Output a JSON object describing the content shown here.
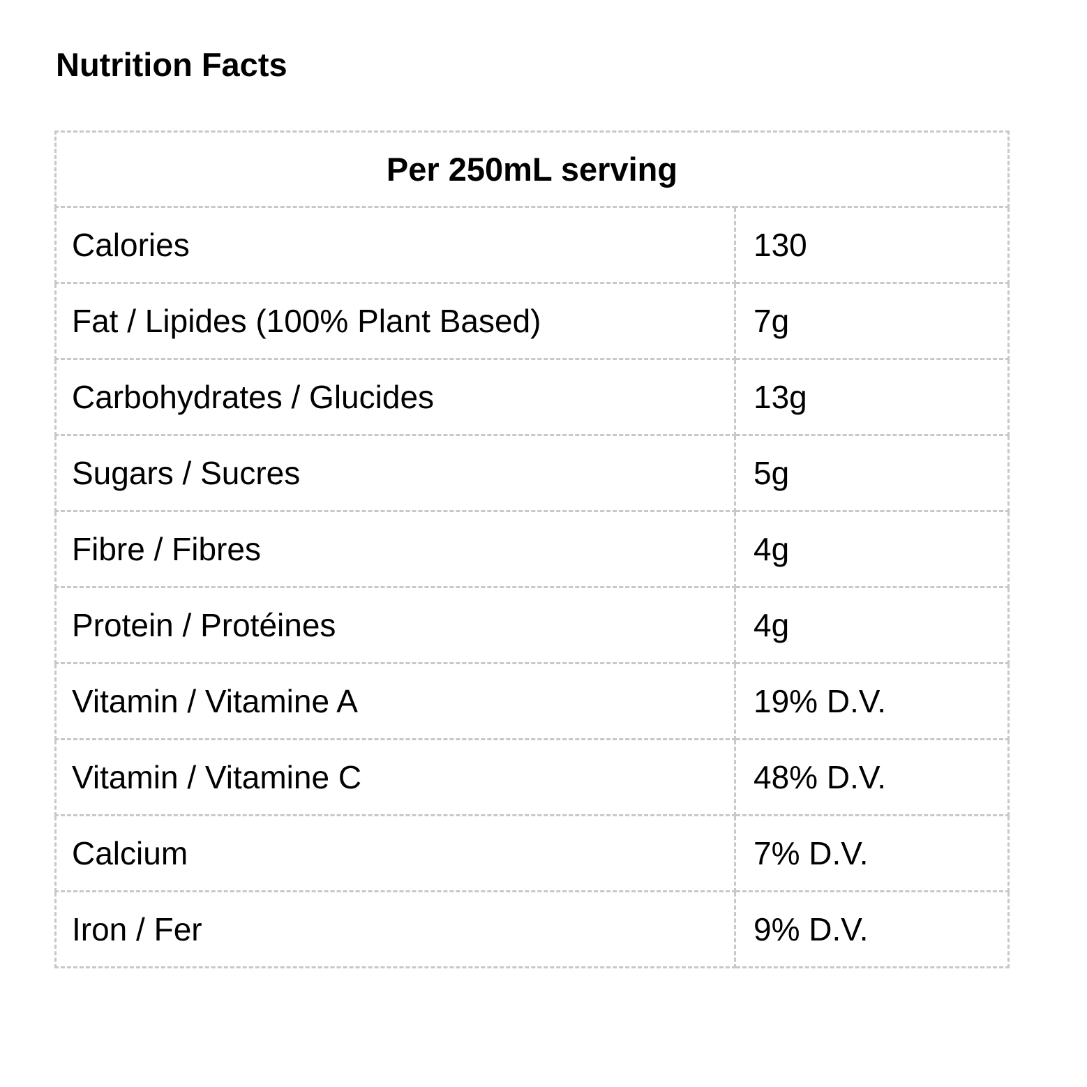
{
  "page": {
    "title": "Nutrition Facts"
  },
  "table": {
    "header": "Per 250mL serving",
    "rows": [
      {
        "label": "Calories",
        "value": "130"
      },
      {
        "label": "Fat / Lipides (100% Plant Based)",
        "value": "7g"
      },
      {
        "label": "Carbohydrates / Glucides",
        "value": "13g"
      },
      {
        "label": "Sugars / Sucres",
        "value": "5g"
      },
      {
        "label": "Fibre / Fibres",
        "value": "4g"
      },
      {
        "label": "Protein / Protéines",
        "value": "4g"
      },
      {
        "label": "Vitamin / Vitamine A",
        "value": "19% D.V."
      },
      {
        "label": "Vitamin / Vitamine C",
        "value": "48% D.V."
      },
      {
        "label": "Calcium",
        "value": "7% D.V."
      },
      {
        "label": "Iron / Fer",
        "value": "9% D.V."
      }
    ]
  },
  "colors": {
    "border": "#c8c8c8",
    "text": "#000000",
    "background": "#ffffff"
  }
}
